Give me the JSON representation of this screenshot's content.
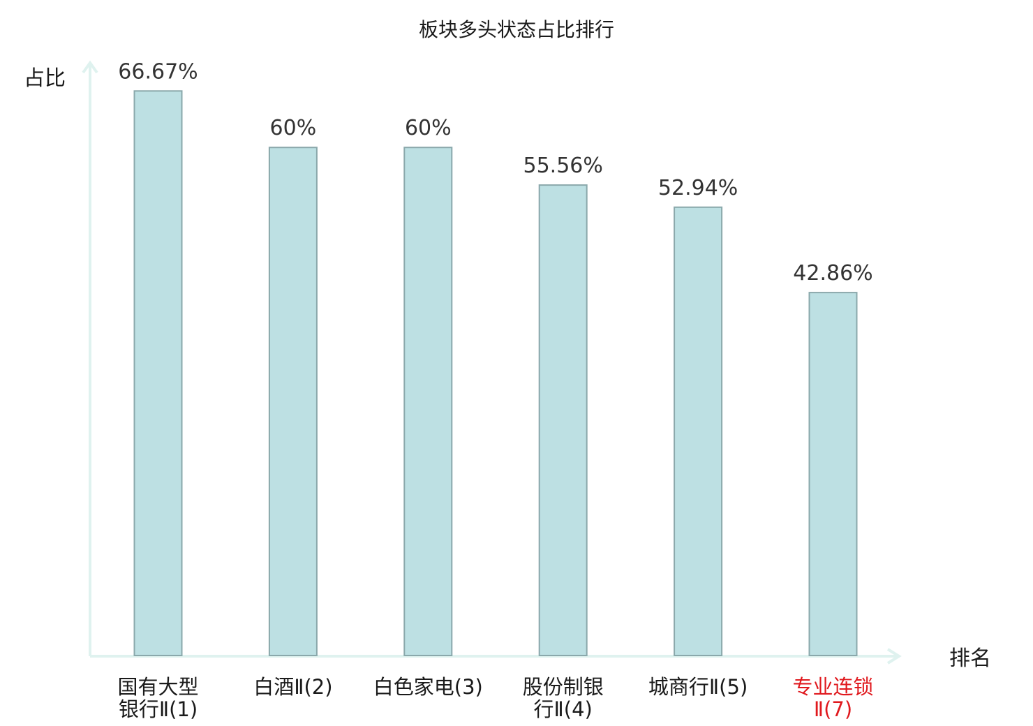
{
  "chart_data": {
    "type": "bar",
    "title": "板块多头状态占比排行",
    "xlabel": "排名",
    "ylabel": "占比",
    "ylim": [
      0,
      70
    ],
    "grid": false,
    "categories": [
      [
        "国有大型",
        "银行Ⅱ(1)"
      ],
      [
        "白酒Ⅱ(2)"
      ],
      [
        "白色家电(3)"
      ],
      [
        "股份制银",
        "行Ⅱ(4)"
      ],
      [
        "城商行Ⅱ(5)"
      ],
      [
        "专业连锁",
        "Ⅱ(7)"
      ]
    ],
    "values": [
      66.67,
      60,
      60,
      55.56,
      52.94,
      42.86
    ],
    "value_labels": [
      "66.67%",
      "60%",
      "60%",
      "55.56%",
      "52.94%",
      "42.86%"
    ],
    "highlight_index": 5,
    "colors": {
      "bar_fill": "#bde0e3",
      "bar_stroke": "#8aa8ab",
      "axis": "#dff2ef",
      "highlight_text": "#e0191e"
    }
  }
}
